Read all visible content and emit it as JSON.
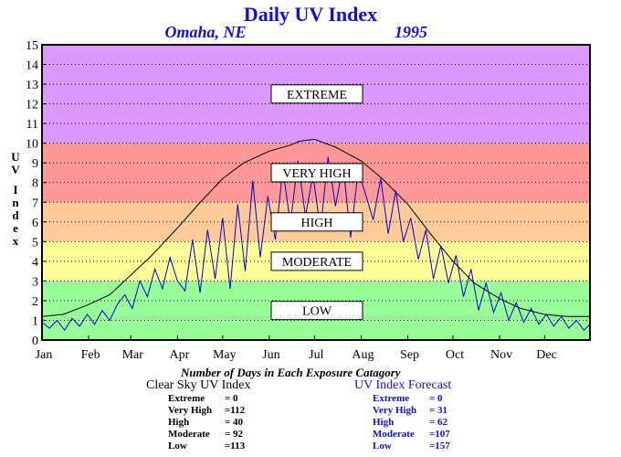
{
  "header": {
    "title": "Daily UV Index",
    "location": "Omaha, NE",
    "year": "1995"
  },
  "chart_data": {
    "type": "line",
    "ylabel": "UV Index",
    "ylim": [
      0,
      15
    ],
    "yticks": [
      "0",
      "1",
      "2",
      "3",
      "4",
      "5",
      "6",
      "7",
      "8",
      "9",
      "10",
      "11",
      "12",
      "13",
      "14",
      "15"
    ],
    "xlim": [
      1,
      365
    ],
    "months": [
      "Jan",
      "Feb",
      "Mar",
      "Apr",
      "May",
      "Jun",
      "Jul",
      "Aug",
      "Sep",
      "Oct",
      "Nov",
      "Dec"
    ],
    "month_start_days": [
      1,
      32,
      60,
      91,
      121,
      152,
      182,
      213,
      244,
      274,
      305,
      335
    ],
    "grid": "dotted horizontal",
    "bands": [
      {
        "label": "LOW",
        "from": 0,
        "to": 3,
        "color": "#99ff99"
      },
      {
        "label": "MODERATE",
        "from": 3,
        "to": 5,
        "color": "#ffff99"
      },
      {
        "label": "HIGH",
        "from": 5,
        "to": 7,
        "color": "#ffcc99"
      },
      {
        "label": "VERY HIGH",
        "from": 7,
        "to": 10,
        "color": "#ff9999"
      },
      {
        "label": "EXTREME",
        "from": 10,
        "to": 15,
        "color": "#dd99ff"
      }
    ],
    "series": [
      {
        "name": "Clear Sky UV Index",
        "color": "#000000",
        "x": [
          1,
          15,
          32,
          46,
          60,
          74,
          91,
          105,
          121,
          135,
          152,
          166,
          172,
          182,
          196,
          213,
          227,
          244,
          258,
          274,
          288,
          305,
          319,
          335,
          350,
          365
        ],
        "values": [
          1.2,
          1.3,
          1.8,
          2.3,
          3.3,
          4.3,
          5.7,
          6.9,
          8.2,
          9.0,
          9.6,
          9.9,
          10.1,
          10.2,
          9.8,
          9.1,
          8.2,
          6.9,
          5.5,
          4.0,
          2.9,
          2.1,
          1.6,
          1.3,
          1.2,
          1.2
        ]
      },
      {
        "name": "UV Index Forecast",
        "color": "#0000cc",
        "x": [
          1,
          6,
          11,
          16,
          21,
          26,
          31,
          36,
          41,
          46,
          51,
          56,
          61,
          66,
          71,
          76,
          81,
          86,
          91,
          96,
          101,
          106,
          111,
          116,
          121,
          126,
          131,
          136,
          141,
          146,
          151,
          156,
          161,
          166,
          171,
          176,
          181,
          186,
          191,
          196,
          201,
          206,
          211,
          216,
          221,
          226,
          231,
          236,
          241,
          246,
          251,
          256,
          261,
          266,
          271,
          276,
          281,
          286,
          291,
          296,
          301,
          306,
          311,
          316,
          321,
          326,
          331,
          336,
          341,
          346,
          351,
          356,
          361,
          365
        ],
        "values": [
          0.9,
          0.6,
          1.0,
          0.5,
          1.1,
          0.7,
          1.3,
          0.8,
          1.5,
          1.0,
          1.8,
          2.3,
          1.6,
          3.0,
          2.2,
          3.6,
          2.6,
          4.2,
          3.0,
          2.5,
          5.1,
          2.4,
          5.6,
          3.1,
          6.2,
          2.6,
          6.9,
          3.5,
          8.1,
          4.2,
          7.3,
          5.1,
          8.7,
          5.9,
          9.1,
          6.3,
          8.4,
          5.6,
          9.3,
          6.8,
          8.9,
          5.2,
          8.6,
          7.4,
          6.1,
          8.2,
          5.4,
          7.6,
          5.0,
          6.2,
          4.1,
          5.6,
          3.1,
          4.8,
          2.9,
          4.3,
          2.2,
          3.6,
          1.5,
          2.9,
          1.4,
          2.4,
          1.0,
          1.9,
          0.9,
          1.6,
          0.8,
          1.3,
          0.7,
          1.2,
          0.6,
          1.0,
          0.5,
          0.8
        ]
      }
    ]
  },
  "stats": {
    "title": "Number of Days in Each Exposure Catagory",
    "clear": {
      "header": "Clear Sky UV Index",
      "rows": [
        {
          "label": "Extreme",
          "value": "=   0"
        },
        {
          "label": "Very High",
          "value": "=112"
        },
        {
          "label": "High",
          "value": "=  40"
        },
        {
          "label": "Moderate",
          "value": "=  92"
        },
        {
          "label": "Low",
          "value": "=113"
        }
      ]
    },
    "forecast": {
      "header": "UV Index Forecast",
      "rows": [
        {
          "label": "Extreme",
          "value": "=    0"
        },
        {
          "label": "Very High",
          "value": "=  31"
        },
        {
          "label": "High",
          "value": "=  62"
        },
        {
          "label": "Moderate",
          "value": "=107"
        },
        {
          "label": "Low",
          "value": "=157"
        }
      ]
    }
  }
}
